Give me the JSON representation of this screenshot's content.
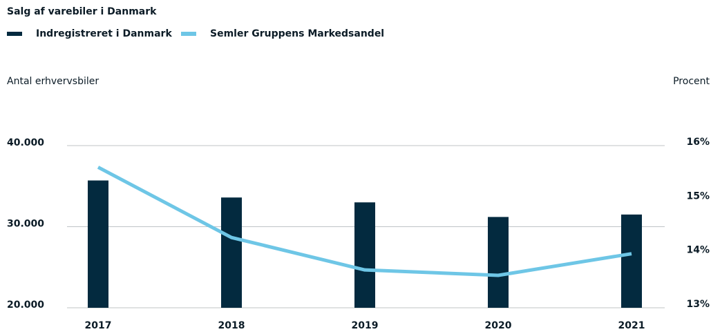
{
  "chart_data": {
    "type": "bar-line",
    "title": "Salg af varebiler i Danmark",
    "ylabel": "Antal erhvervsbiler",
    "y2label": "Procent",
    "categories": [
      "2017",
      "2018",
      "2019",
      "2020",
      "2021"
    ],
    "series": [
      {
        "name": "Indregistreret i Danmark",
        "type": "bar",
        "color": "#032a3f",
        "values": [
          35700,
          33600,
          33000,
          31200,
          31500
        ]
      },
      {
        "name": "Semler Gruppens Markedsandel",
        "type": "line",
        "color": "#6ec6e6",
        "axis": "y2",
        "values": [
          15.6,
          14.3,
          13.7,
          13.6,
          14.0
        ]
      }
    ],
    "ylim": [
      20000,
      40000
    ],
    "yticks": [
      {
        "value": 20000,
        "label": "20.000"
      },
      {
        "value": 30000,
        "label": "30.000"
      },
      {
        "value": 40000,
        "label": "40.000"
      }
    ],
    "y2lim": [
      13,
      16
    ],
    "y2ticks": [
      {
        "value": 13,
        "label": "13%"
      },
      {
        "value": 14,
        "label": "14%"
      },
      {
        "value": 15,
        "label": "15%"
      },
      {
        "value": 16,
        "label": "16%"
      }
    ],
    "grid": true,
    "legend": "top-left"
  }
}
